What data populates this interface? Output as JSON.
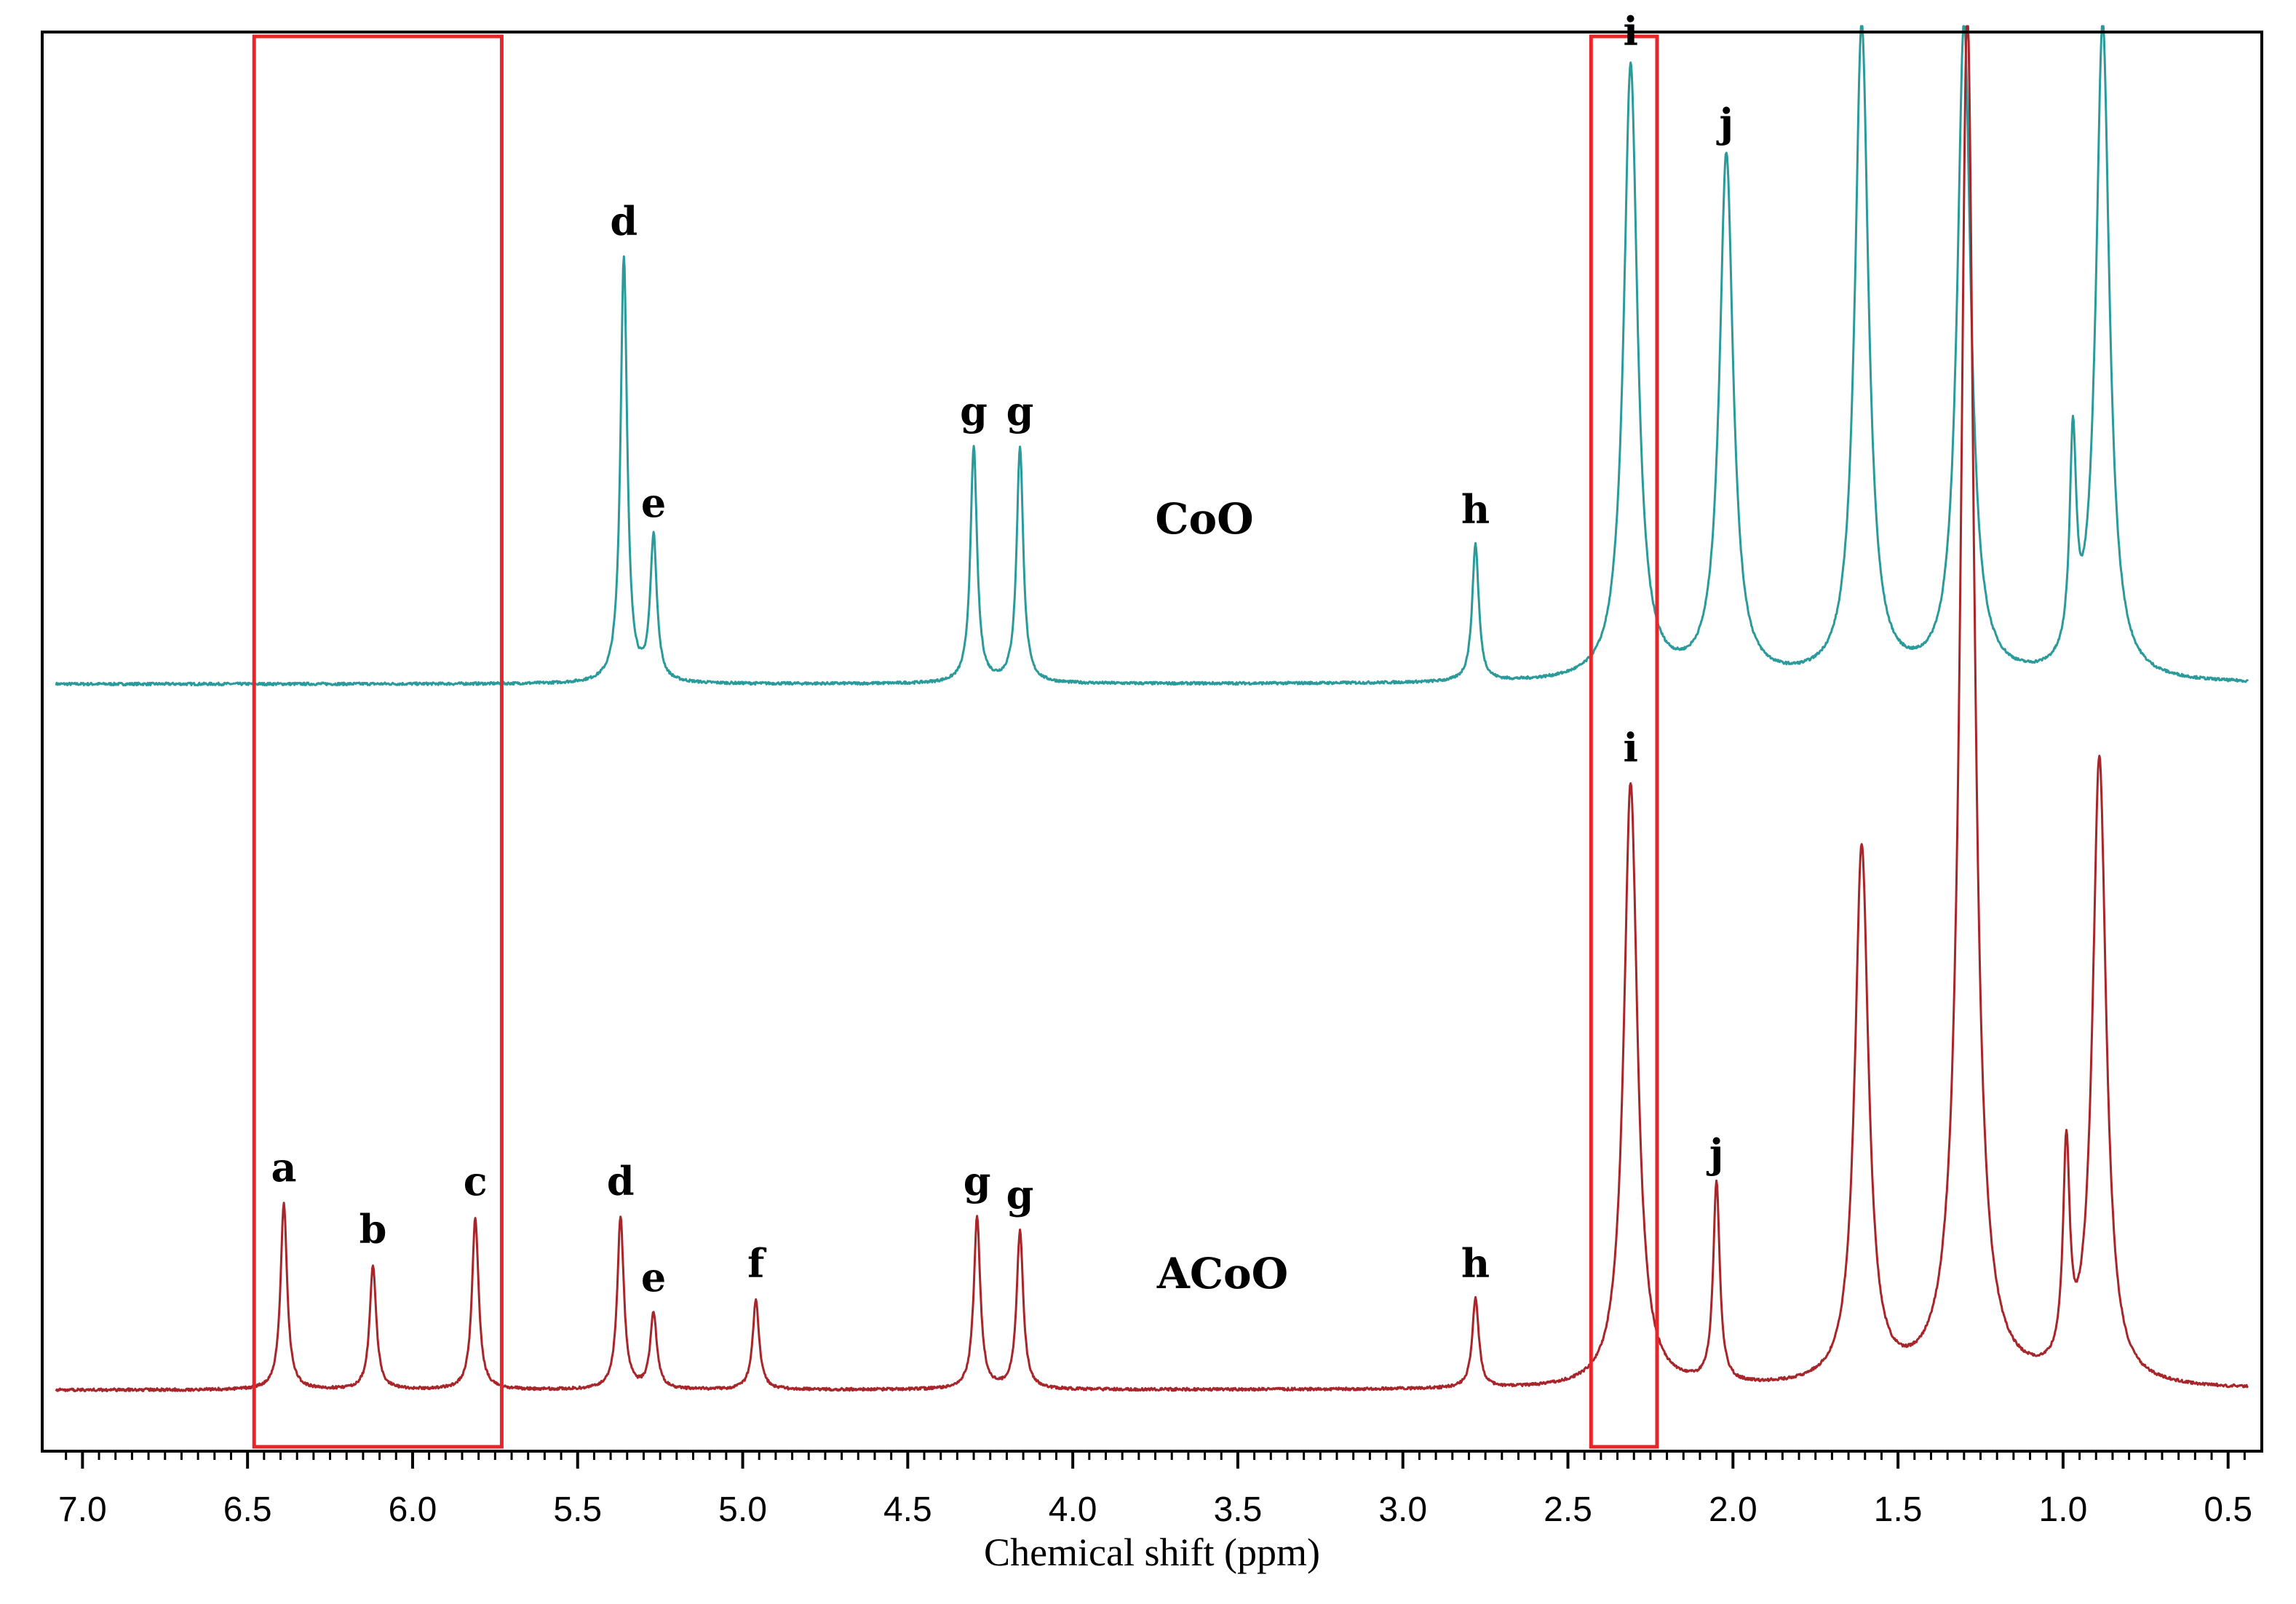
{
  "chart_data": {
    "type": "line",
    "title": "",
    "xlabel": "Chemical shift (ppm)",
    "ylabel": "",
    "xlim": [
      7.1,
      0.42
    ],
    "x_reversed": true,
    "grid": false,
    "x_ticks": [
      7.0,
      6.5,
      6.0,
      5.5,
      5.0,
      4.5,
      4.0,
      3.5,
      3.0,
      2.5,
      2.0,
      1.5,
      1.0,
      0.5
    ],
    "x_tick_labels": [
      "7.0",
      "6.5",
      "6.0",
      "5.5",
      "5.0",
      "4.5",
      "4.0",
      "3.5",
      "3.0",
      "2.5",
      "2.0",
      "1.5",
      "1.0",
      "0.5"
    ],
    "highlight_regions_ppm": [
      [
        6.48,
        5.73
      ],
      [
        2.43,
        2.23
      ]
    ],
    "highlight_color": "#e8262a",
    "series": [
      {
        "name": "CoO",
        "label": "CoO",
        "color": "#2a9a9a",
        "baseline": 0.0,
        "peaks": [
          {
            "label": "d",
            "ppm": 5.36,
            "height": 0.65
          },
          {
            "label": "e",
            "ppm": 5.27,
            "height": 0.22
          },
          {
            "label": "g",
            "ppm": 4.3,
            "height": 0.36
          },
          {
            "label": "g",
            "ppm": 4.16,
            "height": 0.36
          },
          {
            "label": "h",
            "ppm": 2.78,
            "height": 0.21
          },
          {
            "label": "i",
            "ppm": 2.31,
            "height": 0.94
          },
          {
            "label": "j",
            "ppm": 2.02,
            "height": 0.8
          },
          {
            "label": "",
            "ppm": 1.61,
            "height": 1.0
          },
          {
            "label": "",
            "ppm": 1.3,
            "height": 1.0
          },
          {
            "label": "",
            "ppm": 0.97,
            "height": 0.33
          },
          {
            "label": "",
            "ppm": 0.88,
            "height": 1.0
          }
        ]
      },
      {
        "name": "ACoO",
        "label": "ACoO",
        "color": "#a8252a",
        "baseline": 0.0,
        "peaks": [
          {
            "label": "a",
            "ppm": 6.39,
            "height": 0.27
          },
          {
            "label": "b",
            "ppm": 6.12,
            "height": 0.18
          },
          {
            "label": "c",
            "ppm": 5.81,
            "height": 0.25
          },
          {
            "label": "d",
            "ppm": 5.37,
            "height": 0.25
          },
          {
            "label": "e",
            "ppm": 5.27,
            "height": 0.11
          },
          {
            "label": "f",
            "ppm": 4.96,
            "height": 0.13
          },
          {
            "label": "g",
            "ppm": 4.29,
            "height": 0.25
          },
          {
            "label": "g",
            "ppm": 4.16,
            "height": 0.23
          },
          {
            "label": "h",
            "ppm": 2.78,
            "height": 0.13
          },
          {
            "label": "i",
            "ppm": 2.31,
            "height": 0.88
          },
          {
            "label": "j",
            "ppm": 2.05,
            "height": 0.29
          },
          {
            "label": "",
            "ppm": 1.61,
            "height": 0.78
          },
          {
            "label": "",
            "ppm": 1.29,
            "height": 2.0
          },
          {
            "label": "",
            "ppm": 0.99,
            "height": 0.31
          },
          {
            "label": "",
            "ppm": 0.89,
            "height": 0.91
          }
        ]
      }
    ]
  }
}
